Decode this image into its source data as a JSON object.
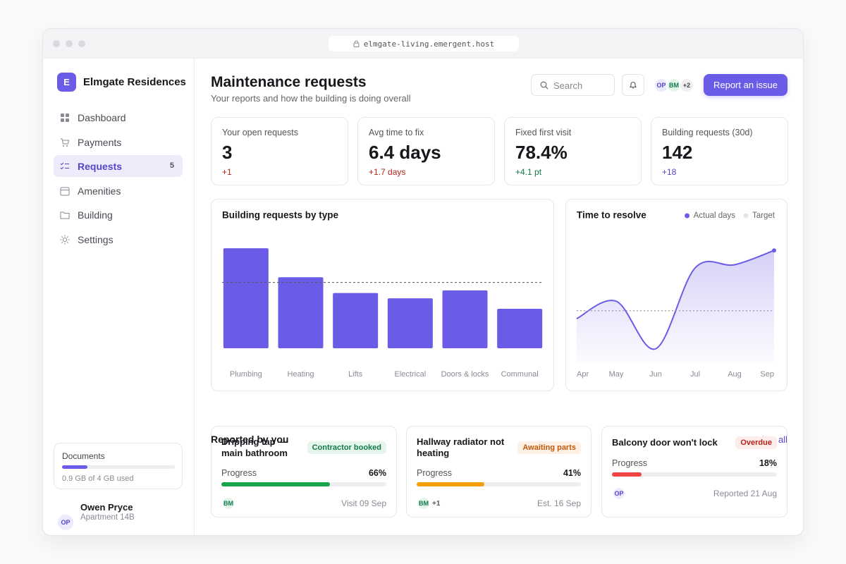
{
  "browser": {
    "url": "elmgate-living.emergent.host"
  },
  "sidebar": {
    "logo": "E",
    "brand": "Elmgate Residences",
    "nav": [
      {
        "label": "Dashboard",
        "icon": "grid"
      },
      {
        "label": "Payments",
        "icon": "cart"
      },
      {
        "label": "Requests",
        "icon": "list",
        "badge": "5",
        "active": true
      },
      {
        "label": "Amenities",
        "icon": "calendar"
      },
      {
        "label": "Building",
        "icon": "folder"
      },
      {
        "label": "Settings",
        "icon": "sun"
      }
    ],
    "storage": {
      "title": "Documents",
      "used": 0.9,
      "total": 4,
      "label": "0.9 GB of 4 GB used"
    },
    "user": {
      "initials": "OP",
      "name": "Owen Pryce",
      "unit": "Apartment 14B"
    }
  },
  "header": {
    "title": "Maintenance requests",
    "subtitle": "Your reports and how the building is doing overall",
    "search": "Search",
    "avatars": [
      "OP",
      "BM"
    ],
    "more": "+2",
    "button": "Report an issue"
  },
  "kpis": [
    {
      "label": "Your open requests",
      "value": "3",
      "delta": "+1",
      "tone": "red"
    },
    {
      "label": "Avg time to fix",
      "value": "6.4 days",
      "delta": "+1.7 days",
      "tone": "red"
    },
    {
      "label": "Fixed first visit",
      "value": "78.4%",
      "delta": "+4.1 pt",
      "tone": "green"
    },
    {
      "label": "Building requests (30d)",
      "value": "142",
      "delta": "+18",
      "tone": "purple"
    }
  ],
  "chart_data": [
    {
      "type": "bar",
      "title": "Building requests by type",
      "categories": [
        "Plumbing",
        "Heating",
        "Lifts",
        "Electrical",
        "Doors & locks",
        "Communal"
      ],
      "values": [
        38,
        27,
        21,
        19,
        22,
        15
      ],
      "color": "#6b5ce7",
      "reference_line": 25,
      "ylim": [
        0,
        45
      ]
    },
    {
      "type": "line",
      "title": "Time to resolve",
      "categories": [
        "Apr",
        "May",
        "Jun",
        "Jul",
        "Aug",
        "Sep"
      ],
      "series": [
        {
          "name": "Actual days",
          "color": "#6b5ce7",
          "values": [
            4.8,
            5.9,
            2.9,
            8.0,
            8.2,
            9.1
          ]
        },
        {
          "name": "Target",
          "color": "#9a9aa6",
          "values": [
            5.3,
            5.3,
            5.3,
            5.3,
            5.3,
            5.3
          ]
        }
      ],
      "ylim": [
        2,
        10
      ]
    }
  ],
  "reported": {
    "title": "Reported by you",
    "link": "View all",
    "cards": [
      {
        "title": "Dripping tap — main bathroom",
        "status": "Contractor booked",
        "tone": "green",
        "progress_title": "Progress",
        "progress": 66,
        "progress_label": "66%",
        "color": "#16a34a",
        "avatars": [
          "BM"
        ],
        "meta": "Visit 09 Sep"
      },
      {
        "title": "Hallway radiator not heating",
        "status": "Awaiting parts",
        "tone": "orange",
        "progress_title": "Progress",
        "progress": 41,
        "progress_label": "41%",
        "color": "#f59e0b",
        "avatars": [
          "BM"
        ],
        "more": "+1",
        "meta": "Est. 16 Sep"
      },
      {
        "title": "Balcony door won't lock",
        "status": "Overdue",
        "tone": "red",
        "progress_title": "Progress",
        "progress": 18,
        "progress_label": "18%",
        "color": "#ef4444",
        "avatars": [
          "OP"
        ],
        "meta": "Reported 21 Aug"
      }
    ]
  }
}
